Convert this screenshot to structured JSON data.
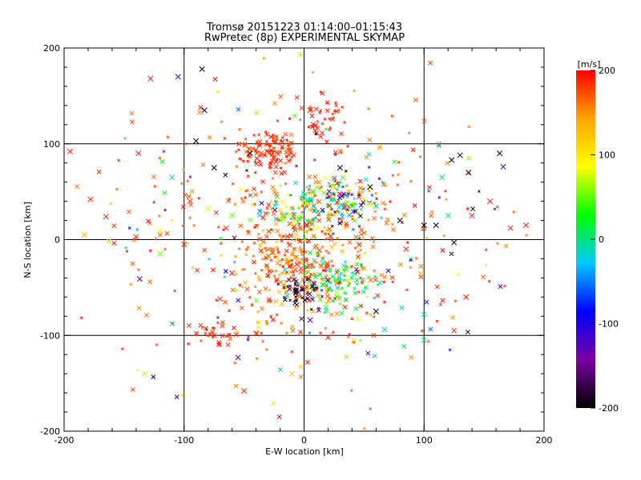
{
  "chart_data": {
    "type": "scatter",
    "title": "Tromsø 20151223 01:14:00–01:15:43",
    "subtitle": "RwPretec (8p) EXPERIMENTAL SKYMAP",
    "xlabel": "E-W location [km]",
    "ylabel": "N-S location [km]",
    "xlim": [
      -200,
      200
    ],
    "ylim": [
      -200,
      200
    ],
    "grid": true,
    "x_ticks": [
      "-200",
      "-100",
      "0",
      "100",
      "200"
    ],
    "y_ticks": [
      "-200",
      "-100",
      "0",
      "100",
      "200"
    ],
    "colorbar": {
      "label": "[m/s]",
      "range": [
        -200,
        200
      ],
      "ticks": [
        "200",
        "100",
        "0",
        "-100",
        "-200"
      ],
      "colors": [
        "#000000",
        "#7a00a0",
        "#0000ff",
        "#00c8ff",
        "#00ff00",
        "#ffff00",
        "#ffa500",
        "#ff0000"
      ]
    },
    "clusters": [
      {
        "cx": -30,
        "cy": 92,
        "sx": 14,
        "sy": 12,
        "n": 110,
        "vmin": 170,
        "vmax": 200
      },
      {
        "cx": 5,
        "cy": 32,
        "sx": 20,
        "sy": 14,
        "n": 150,
        "vmin": -60,
        "vmax": 200
      },
      {
        "cx": 35,
        "cy": 42,
        "sx": 14,
        "sy": 12,
        "n": 80,
        "vmin": -200,
        "vmax": 150
      },
      {
        "cx": -10,
        "cy": -25,
        "sx": 20,
        "sy": 24,
        "n": 190,
        "vmin": 120,
        "vmax": 200
      },
      {
        "cx": 30,
        "cy": -45,
        "sx": 18,
        "sy": 14,
        "n": 110,
        "vmin": -30,
        "vmax": 80
      },
      {
        "cx": -5,
        "cy": -55,
        "sx": 12,
        "sy": 10,
        "n": 50,
        "vmin": -200,
        "vmax": -150
      },
      {
        "cx": 20,
        "cy": 125,
        "sx": 10,
        "sy": 14,
        "n": 35,
        "vmin": 180,
        "vmax": 200
      },
      {
        "cx": -75,
        "cy": -100,
        "sx": 10,
        "sy": 8,
        "n": 25,
        "vmin": 170,
        "vmax": 200
      },
      {
        "cx": 0,
        "cy": 10,
        "sx": 70,
        "sy": 70,
        "n": 380,
        "vmin": 150,
        "vmax": 200
      },
      {
        "cx": 0,
        "cy": 0,
        "sx": 95,
        "sy": 85,
        "n": 130,
        "vmin": -200,
        "vmax": 200
      }
    ],
    "large_markers": [
      [
        -85,
        178,
        -200
      ],
      [
        -128,
        168,
        190
      ],
      [
        -105,
        170,
        -120
      ],
      [
        -3,
        193,
        60
      ],
      [
        -138,
        90,
        190
      ],
      [
        -110,
        65,
        0
      ],
      [
        -178,
        42,
        190
      ],
      [
        -165,
        24,
        190
      ],
      [
        -183,
        5,
        140
      ],
      [
        -195,
        92,
        190
      ],
      [
        -120,
        10,
        90
      ],
      [
        -137,
        -41,
        -120
      ],
      [
        -120,
        -15,
        50
      ],
      [
        -110,
        -88,
        0
      ],
      [
        -133,
        -140,
        110
      ],
      [
        -75,
        -100,
        190
      ],
      [
        -50,
        -158,
        190
      ],
      [
        -55,
        -123,
        -150
      ],
      [
        -75,
        75,
        -200
      ],
      [
        -45,
        90,
        -200
      ],
      [
        -60,
        25,
        50
      ],
      [
        -65,
        12,
        190
      ],
      [
        -80,
        32,
        100
      ],
      [
        -60,
        -35,
        190
      ],
      [
        -40,
        -98,
        190
      ],
      [
        20,
        -102,
        190
      ],
      [
        5,
        -84,
        -120
      ],
      [
        45,
        -83,
        80
      ],
      [
        60,
        -75,
        -200
      ],
      [
        67,
        -94,
        0
      ],
      [
        80,
        20,
        -200
      ],
      [
        100,
        15,
        -200
      ],
      [
        110,
        15,
        -200
      ],
      [
        115,
        65,
        0
      ],
      [
        120,
        25,
        0
      ],
      [
        123,
        83,
        -200
      ],
      [
        130,
        88,
        -200
      ],
      [
        137,
        70,
        -200
      ],
      [
        155,
        40,
        190
      ],
      [
        140,
        25,
        190
      ],
      [
        125,
        -3,
        -200
      ],
      [
        163,
        90,
        -200
      ],
      [
        166,
        76,
        -120
      ],
      [
        172,
        12,
        190
      ],
      [
        185,
        15,
        190
      ],
      [
        200,
        0,
        190
      ],
      [
        200,
        -195,
        -200
      ],
      [
        100,
        -78,
        0
      ],
      [
        100,
        -105,
        0
      ],
      [
        125,
        -95,
        190
      ],
      [
        135,
        -60,
        190
      ],
      [
        -70,
        -62,
        190
      ],
      [
        -90,
        103,
        -200
      ],
      [
        -83,
        135,
        -200
      ],
      [
        5,
        135,
        190
      ],
      [
        30,
        75,
        -200
      ],
      [
        55,
        55,
        -200
      ],
      [
        60,
        35,
        0
      ],
      [
        40,
        35,
        30
      ],
      [
        85,
        -10,
        190
      ],
      [
        -140,
        3,
        190
      ],
      [
        -10,
        -140,
        130
      ],
      [
        -95,
        40,
        190
      ],
      [
        -100,
        -5,
        190
      ]
    ]
  }
}
